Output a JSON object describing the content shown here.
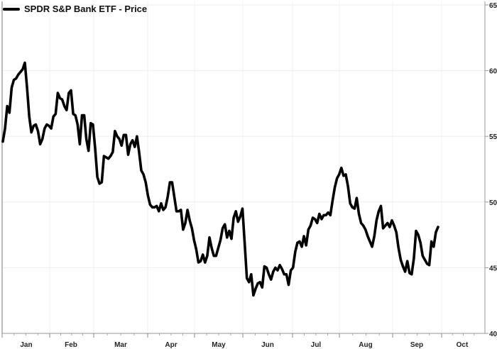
{
  "chart_data": {
    "type": "line",
    "title": "",
    "legend": [
      "SPDR S&P Bank ETF - Price"
    ],
    "xlabel": "",
    "ylabel": "",
    "ylim": [
      40,
      65
    ],
    "yticks": [
      40,
      45,
      50,
      55,
      60,
      65
    ],
    "xticks": [
      "Jan",
      "Feb",
      "Mar",
      "Apr",
      "May",
      "Jun",
      "Jul",
      "Aug",
      "Sep",
      "Oct"
    ],
    "grid": true,
    "legend_position": "top-left",
    "y_axis_position": "right",
    "series": [
      {
        "name": "SPDR S&P Bank ETF - Price",
        "color": "#000000",
        "values": [
          54.6,
          55.6,
          57.3,
          56.8,
          58.7,
          59.3,
          59.4,
          59.7,
          59.9,
          60.1,
          60.6,
          58.7,
          56.5,
          55.3,
          55.8,
          55.9,
          55.4,
          54.4,
          54.8,
          55.6,
          55.9,
          55.8,
          55.6,
          56.5,
          56.7,
          58.3,
          57.9,
          57.8,
          57.3,
          57.0,
          58.3,
          58.5,
          56.7,
          56.6,
          55.9,
          54.4,
          56.6,
          56.6,
          54.8,
          53.9,
          56.0,
          55.9,
          54.1,
          51.9,
          51.4,
          51.5,
          53.5,
          53.4,
          53.3,
          53.5,
          53.8,
          55.4,
          55.0,
          54.8,
          54.3,
          55.1,
          55.1,
          53.6,
          54.4,
          54.7,
          54.2,
          55.0,
          53.8,
          52.4,
          52.1,
          51.5,
          50.5,
          49.8,
          49.6,
          49.6,
          49.7,
          49.3,
          49.9,
          49.4,
          49.6,
          50.4,
          51.5,
          51.5,
          50.4,
          49.3,
          49.3,
          49.4,
          47.9,
          48.4,
          49.4,
          48.6,
          48.0,
          47.1,
          46.4,
          45.4,
          45.5,
          46.0,
          45.4,
          45.9,
          47.3,
          46.5,
          45.9,
          45.9,
          46.5,
          47.1,
          48.0,
          48.3,
          47.3,
          47.8,
          47.2,
          48.8,
          49.3,
          48.5,
          48.9,
          49.5,
          46.9,
          44.2,
          43.9,
          44.5,
          42.9,
          43.4,
          43.8,
          43.9,
          43.5,
          45.1,
          45.0,
          44.5,
          44.1,
          44.7,
          45.0,
          44.8,
          45.2,
          44.9,
          44.5,
          44.5,
          43.7,
          44.8,
          45.0,
          46.2,
          46.9,
          47.0,
          46.6,
          47.4,
          46.7,
          47.9,
          48.2,
          48.8,
          48.7,
          48.4,
          49.1,
          48.7,
          49.0,
          49.0,
          49.2,
          49.0,
          50.1,
          51.1,
          51.8,
          52.1,
          52.6,
          52.0,
          52.1,
          51.2,
          49.9,
          49.6,
          49.5,
          50.3,
          49.1,
          48.4,
          48.2,
          47.9,
          47.4,
          47.0,
          46.6,
          47.4,
          48.6,
          49.3,
          49.7,
          48.0,
          48.2,
          48.4,
          48.1,
          48.6,
          48.2,
          47.7,
          46.5,
          45.6,
          45.1,
          44.7,
          45.5,
          44.6,
          44.5,
          45.7,
          47.8,
          47.5,
          46.9,
          45.9,
          45.6,
          45.3,
          45.2,
          47.0,
          46.6,
          47.7,
          48.1
        ]
      }
    ],
    "value_range": {
      "start": 54.6,
      "high": 60.6,
      "low": 42.9,
      "end": 48.1
    }
  },
  "legend": {
    "label": "SPDR S&P Bank ETF - Price"
  },
  "axis": {
    "y_labels": [
      "65",
      "60",
      "55",
      "50",
      "45",
      "40"
    ],
    "x_labels": [
      "Jan",
      "Feb",
      "Mar",
      "Apr",
      "May",
      "Jun",
      "Jul",
      "Aug",
      "Sep",
      "Oct"
    ]
  },
  "colors": {
    "line": "#000000",
    "grid": "#eeeeee",
    "axis": "#999999",
    "text": "#111111"
  }
}
